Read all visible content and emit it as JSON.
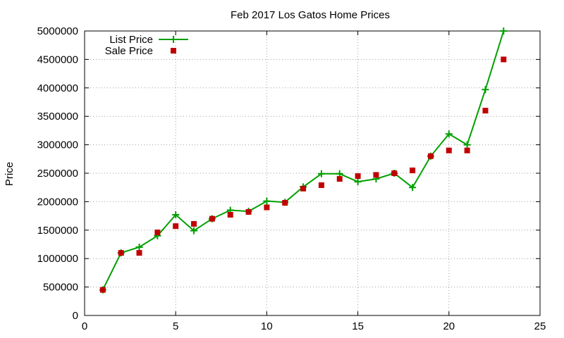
{
  "chart_data": {
    "type": "line",
    "title": "Feb 2017 Los Gatos Home Prices",
    "xlabel": "",
    "ylabel": "Price",
    "xlim": [
      0,
      25
    ],
    "ylim": [
      0,
      5000000
    ],
    "x_ticks": [
      "0",
      "5",
      "10",
      "15",
      "20",
      "25"
    ],
    "y_ticks": [
      "0",
      "500000",
      "1000000",
      "1500000",
      "2000000",
      "2500000",
      "3000000",
      "3500000",
      "4000000",
      "4500000",
      "5000000"
    ],
    "grid": true,
    "legend_position": "top-left",
    "series": [
      {
        "name": "List Price",
        "style": "line with cross markers",
        "color": "#00a000",
        "x": [
          1,
          2,
          3,
          4,
          5,
          6,
          7,
          8,
          9,
          10,
          11,
          12,
          13,
          14,
          15,
          16,
          17,
          18,
          19,
          20,
          21,
          22,
          23
        ],
        "y": [
          450000,
          1100000,
          1200000,
          1400000,
          1770000,
          1490000,
          1700000,
          1850000,
          1830000,
          2010000,
          1990000,
          2260000,
          2490000,
          2490000,
          2350000,
          2400000,
          2500000,
          2250000,
          2800000,
          3190000,
          3000000,
          3970000,
          5000000
        ]
      },
      {
        "name": "Sale Price",
        "style": "square points",
        "color": "#c00000",
        "x": [
          1,
          2,
          3,
          4,
          5,
          6,
          7,
          8,
          9,
          10,
          11,
          12,
          13,
          14,
          15,
          16,
          17,
          18,
          19,
          20,
          21,
          22,
          23
        ],
        "y": [
          450000,
          1100000,
          1100000,
          1460000,
          1570000,
          1610000,
          1700000,
          1770000,
          1820000,
          1900000,
          1980000,
          2230000,
          2290000,
          2400000,
          2450000,
          2470000,
          2500000,
          2550000,
          2800000,
          2900000,
          2900000,
          3600000,
          4500000
        ]
      }
    ]
  }
}
